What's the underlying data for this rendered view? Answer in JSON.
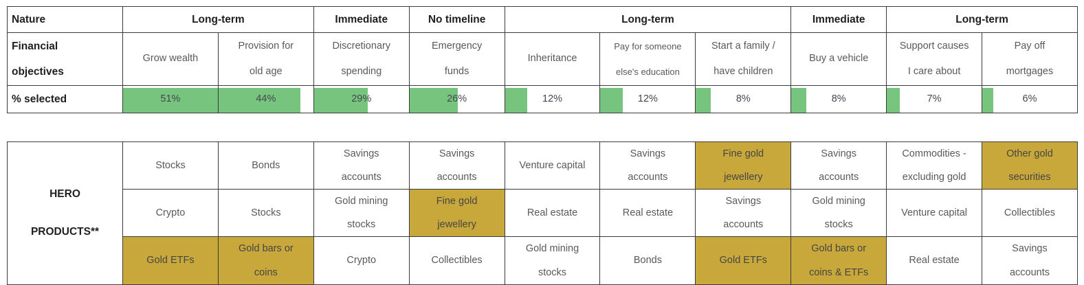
{
  "colors": {
    "bar_green": "#76c47e",
    "highlight_gold": "#c9a83b",
    "border": "#3a3a3a",
    "header_text": "#1f1f1f",
    "body_text": "#595959"
  },
  "top_table": {
    "row_labels": {
      "nature": "Nature",
      "objectives": "Financial\nobjectives",
      "selected": "% selected"
    },
    "nature_groups": [
      {
        "label": "Long-term",
        "span": 2
      },
      {
        "label": "Immediate",
        "span": 1
      },
      {
        "label": "No timeline",
        "span": 1
      },
      {
        "label": "Long-term",
        "span": 3
      },
      {
        "label": "Immediate",
        "span": 1
      },
      {
        "label": "Long-term",
        "span": 2
      }
    ],
    "bar_max": 51,
    "columns": [
      {
        "objective": "Grow wealth",
        "pct": "51%",
        "value": 51
      },
      {
        "objective": "Provision for\nold age",
        "pct": "44%",
        "value": 44
      },
      {
        "objective": "Discretionary\nspending",
        "pct": "29%",
        "value": 29
      },
      {
        "objective": "Emergency\nfunds",
        "pct": "26%",
        "value": 26
      },
      {
        "objective": "Inheritance",
        "pct": "12%",
        "value": 12
      },
      {
        "objective": "Pay for someone\nelse's education",
        "pct": "12%",
        "value": 12
      },
      {
        "objective": "Start a family /\nhave children",
        "pct": "8%",
        "value": 8
      },
      {
        "objective": "Buy a vehicle",
        "pct": "8%",
        "value": 8
      },
      {
        "objective": "Support causes\nI care about",
        "pct": "7%",
        "value": 7
      },
      {
        "objective": "Pay off\nmortgages",
        "pct": "6%",
        "value": 6
      }
    ]
  },
  "bottom_table": {
    "hero_label": "HERO\nPRODUCTS**",
    "rows": [
      [
        {
          "text": "Stocks",
          "gold": false
        },
        {
          "text": "Bonds",
          "gold": false
        },
        {
          "text": "Savings\naccounts",
          "gold": false
        },
        {
          "text": "Savings\naccounts",
          "gold": false
        },
        {
          "text": "Venture capital",
          "gold": false
        },
        {
          "text": "Savings\naccounts",
          "gold": false
        },
        {
          "text": "Fine gold\njewellery",
          "gold": true
        },
        {
          "text": "Savings\naccounts",
          "gold": false
        },
        {
          "text": "Commodities -\nexcluding gold",
          "gold": false
        },
        {
          "text": "Other gold\nsecurities",
          "gold": true
        }
      ],
      [
        {
          "text": "Crypto",
          "gold": false
        },
        {
          "text": "Stocks",
          "gold": false
        },
        {
          "text": "Gold mining\nstocks",
          "gold": false
        },
        {
          "text": "Fine gold\njewellery",
          "gold": true
        },
        {
          "text": "Real estate",
          "gold": false
        },
        {
          "text": "Real estate",
          "gold": false
        },
        {
          "text": "Savings\naccounts",
          "gold": false
        },
        {
          "text": "Gold mining\nstocks",
          "gold": false
        },
        {
          "text": "Venture capital",
          "gold": false
        },
        {
          "text": "Collectibles",
          "gold": false
        }
      ],
      [
        {
          "text": "Gold ETFs",
          "gold": true
        },
        {
          "text": "Gold bars or\ncoins",
          "gold": true
        },
        {
          "text": "Crypto",
          "gold": false
        },
        {
          "text": "Collectibles",
          "gold": false
        },
        {
          "text": "Gold mining\nstocks",
          "gold": false
        },
        {
          "text": "Bonds",
          "gold": false
        },
        {
          "text": "Gold ETFs",
          "gold": true
        },
        {
          "text": "Gold bars or\ncoins & ETFs",
          "gold": true
        },
        {
          "text": "Real estate",
          "gold": false
        },
        {
          "text": "Savings\naccounts",
          "gold": false
        }
      ]
    ]
  },
  "chart_data": [
    {
      "type": "bar",
      "title": "Financial objectives — % selected",
      "categories": [
        "Grow wealth",
        "Provision for old age",
        "Discretionary spending",
        "Emergency funds",
        "Inheritance",
        "Pay for someone else's education",
        "Start a family / have children",
        "Buy a vehicle",
        "Support causes I care about",
        "Pay off mortgages"
      ],
      "values": [
        51,
        44,
        29,
        26,
        12,
        12,
        8,
        8,
        7,
        6
      ],
      "nature_groups": [
        "Long-term",
        "Long-term",
        "Immediate",
        "No timeline",
        "Long-term",
        "Long-term",
        "Long-term",
        "Immediate",
        "Long-term",
        "Long-term"
      ],
      "value_format": "percent",
      "bar_scale_max": 51,
      "bar_color": "#76c47e",
      "orientation": "horizontal-bars-in-table-cells"
    },
    {
      "type": "table",
      "title": "HERO PRODUCTS**",
      "rows": [
        [
          "Stocks",
          "Bonds",
          "Savings accounts",
          "Savings accounts",
          "Venture capital",
          "Savings accounts",
          "Fine gold jewellery",
          "Savings accounts",
          "Commodities - excluding gold",
          "Other gold securities"
        ],
        [
          "Crypto",
          "Stocks",
          "Gold mining stocks",
          "Fine gold jewellery",
          "Real estate",
          "Real estate",
          "Savings accounts",
          "Gold mining stocks",
          "Venture capital",
          "Collectibles"
        ],
        [
          "Gold ETFs",
          "Gold bars or coins",
          "Crypto",
          "Collectibles",
          "Gold mining stocks",
          "Bonds",
          "Gold ETFs",
          "Gold bars or coins & ETFs",
          "Real estate",
          "Savings accounts"
        ]
      ],
      "gold_highlighted_cells": [
        "r1c7 Fine gold jewellery",
        "r1c10 Other gold securities",
        "r2c4 Fine gold jewellery",
        "r3c1 Gold ETFs",
        "r3c2 Gold bars or coins",
        "r3c7 Gold ETFs",
        "r3c8 Gold bars or coins & ETFs"
      ],
      "highlight_color": "#c9a83b"
    }
  ]
}
